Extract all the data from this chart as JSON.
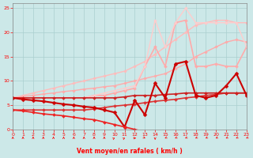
{
  "xlabel": "Vent moyen/en rafales ( km/h )",
  "xlim": [
    0,
    23
  ],
  "ylim": [
    0,
    26
  ],
  "yticks": [
    0,
    5,
    10,
    15,
    20,
    25
  ],
  "xticks": [
    0,
    1,
    2,
    3,
    4,
    5,
    6,
    7,
    8,
    9,
    10,
    11,
    12,
    13,
    14,
    15,
    16,
    17,
    18,
    19,
    20,
    21,
    22,
    23
  ],
  "bg_color": "#cce8e8",
  "grid_color": "#aacfcf",
  "series": [
    {
      "x": [
        0,
        1,
        2,
        3,
        4,
        5,
        6,
        7,
        8,
        9,
        10,
        11,
        12,
        13,
        14,
        15,
        16,
        17,
        18,
        19,
        20,
        21,
        22,
        23
      ],
      "y": [
        6.5,
        6.8,
        7.0,
        7.3,
        7.5,
        7.8,
        8.0,
        8.3,
        8.5,
        8.8,
        9.0,
        9.5,
        10.0,
        10.5,
        11.0,
        11.5,
        12.5,
        13.5,
        15.0,
        16.0,
        17.0,
        18.0,
        18.5,
        18.0
      ],
      "color": "#ffaaaa",
      "lw": 1.0,
      "marker": "D",
      "ms": 1.8
    },
    {
      "x": [
        0,
        1,
        2,
        3,
        4,
        5,
        6,
        7,
        8,
        9,
        10,
        11,
        12,
        13,
        14,
        15,
        16,
        17,
        18,
        19,
        20,
        21,
        22,
        23
      ],
      "y": [
        6.5,
        7.0,
        7.5,
        8.0,
        8.5,
        9.0,
        9.5,
        10.0,
        10.5,
        11.0,
        11.5,
        12.0,
        13.0,
        14.0,
        15.5,
        17.0,
        18.5,
        20.0,
        21.5,
        22.0,
        22.5,
        22.5,
        22.0,
        22.0
      ],
      "color": "#ffbbbb",
      "lw": 1.0,
      "marker": "D",
      "ms": 1.8
    },
    {
      "x": [
        0,
        1,
        2,
        3,
        4,
        5,
        6,
        7,
        8,
        9,
        10,
        11,
        12,
        13,
        14,
        15,
        16,
        17,
        18,
        19,
        20,
        21,
        22,
        23
      ],
      "y": [
        6.5,
        6.5,
        6.5,
        6.5,
        6.5,
        6.5,
        6.5,
        6.5,
        7.0,
        7.0,
        7.5,
        8.0,
        8.5,
        13.0,
        17.0,
        13.0,
        22.0,
        22.5,
        13.0,
        13.0,
        13.5,
        13.0,
        13.0,
        17.0
      ],
      "color": "#ffaaaa",
      "lw": 1.2,
      "marker": "D",
      "ms": 2.0
    },
    {
      "x": [
        0,
        1,
        2,
        3,
        4,
        5,
        6,
        7,
        8,
        9,
        10,
        11,
        12,
        13,
        14,
        15,
        16,
        17,
        18,
        19,
        20,
        21,
        22,
        23
      ],
      "y": [
        6.5,
        6.5,
        6.5,
        6.5,
        6.5,
        6.5,
        6.5,
        6.5,
        7.0,
        7.5,
        8.0,
        8.5,
        9.0,
        13.0,
        22.5,
        17.0,
        22.0,
        25.0,
        22.0,
        22.0,
        22.0,
        22.0,
        22.0,
        17.0
      ],
      "color": "#ffcccc",
      "lw": 1.0,
      "marker": "D",
      "ms": 1.8
    },
    {
      "x": [
        0,
        1,
        2,
        3,
        4,
        5,
        6,
        7,
        8,
        9,
        10,
        11,
        12,
        13,
        14,
        15,
        16,
        17,
        18,
        19,
        20,
        21,
        22,
        23
      ],
      "y": [
        4.0,
        4.0,
        4.0,
        4.0,
        4.0,
        4.0,
        4.0,
        4.0,
        4.2,
        4.5,
        4.8,
        5.0,
        5.2,
        5.5,
        5.8,
        6.0,
        6.2,
        6.5,
        6.7,
        7.0,
        7.2,
        7.5,
        7.5,
        7.5
      ],
      "color": "#dd3333",
      "lw": 1.2,
      "marker": "D",
      "ms": 2.0
    },
    {
      "x": [
        0,
        1,
        2,
        3,
        4,
        5,
        6,
        7,
        8,
        9,
        10,
        11,
        12,
        13,
        14,
        15,
        16,
        17,
        18,
        19,
        20,
        21,
        22,
        23
      ],
      "y": [
        6.5,
        6.5,
        6.5,
        6.5,
        6.5,
        6.5,
        6.5,
        6.5,
        6.5,
        6.5,
        6.5,
        6.7,
        7.0,
        7.0,
        7.0,
        7.2,
        7.3,
        7.5,
        7.5,
        7.5,
        7.5,
        7.5,
        7.5,
        7.5
      ],
      "color": "#cc2222",
      "lw": 1.2,
      "marker": "D",
      "ms": 2.0
    },
    {
      "x": [
        0,
        1,
        2,
        3,
        4,
        5,
        6,
        7,
        8,
        9,
        10,
        11,
        12,
        13,
        14,
        15,
        16,
        17,
        18,
        19,
        20,
        21,
        22,
        23
      ],
      "y": [
        6.5,
        6.2,
        6.0,
        5.8,
        5.5,
        5.2,
        5.0,
        4.7,
        4.5,
        4.0,
        3.5,
        0.5,
        6.0,
        3.0,
        9.5,
        6.5,
        13.5,
        14.0,
        7.0,
        6.5,
        7.0,
        9.0,
        11.5,
        7.0
      ],
      "color": "#cc0000",
      "lw": 1.5,
      "marker": "D",
      "ms": 2.5
    },
    {
      "x": [
        0,
        1,
        2,
        3,
        4,
        5,
        6,
        7,
        8,
        9,
        10,
        11,
        12,
        13
      ],
      "y": [
        4.0,
        3.8,
        3.5,
        3.2,
        3.0,
        2.8,
        2.5,
        2.2,
        2.0,
        1.5,
        1.0,
        0.5,
        0.0,
        -0.5
      ],
      "color": "#ee2222",
      "lw": 1.2,
      "marker": "D",
      "ms": 2.0
    }
  ],
  "wind_dirs": [
    180,
    180,
    180,
    180,
    180,
    180,
    180,
    180,
    180,
    180,
    225,
    225,
    270,
    315,
    0,
    45,
    45,
    45,
    45,
    45,
    45,
    45,
    45,
    45
  ]
}
